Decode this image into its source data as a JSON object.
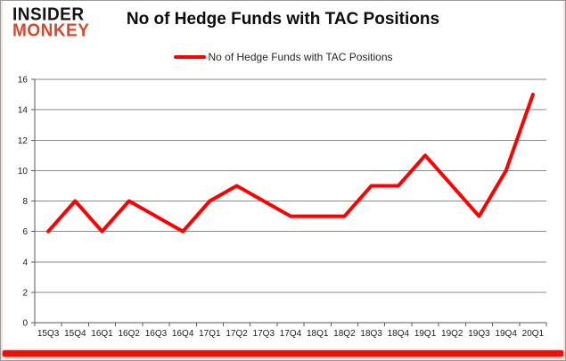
{
  "logo": {
    "line1": "INSIDER",
    "line2": "MONKEY"
  },
  "title": "No of Hedge Funds with TAC Positions",
  "legend": {
    "label": "No of Hedge Funds with TAC Positions",
    "color": "#ff0000"
  },
  "chart_data": {
    "type": "line",
    "title": "No of Hedge Funds with TAC Positions",
    "categories": [
      "15Q3",
      "15Q4",
      "16Q1",
      "16Q2",
      "16Q3",
      "16Q4",
      "17Q1",
      "17Q2",
      "17Q3",
      "17Q4",
      "18Q1",
      "18Q2",
      "18Q3",
      "18Q4",
      "19Q1",
      "19Q2",
      "19Q3",
      "19Q4",
      "20Q1"
    ],
    "series": [
      {
        "name": "No of Hedge Funds with TAC Positions",
        "color": "#ff0000",
        "values": [
          6,
          8,
          6,
          8,
          7,
          6,
          8,
          9,
          8,
          7,
          7,
          7,
          9,
          9,
          11,
          9,
          7,
          10,
          15
        ]
      }
    ],
    "xlabel": "",
    "ylabel": "",
    "ylim": [
      0,
      16
    ],
    "ytick_step": 2,
    "grid": true,
    "legend_position": "top-center"
  },
  "colors": {
    "line_red": "#ff0000",
    "logo_red": "#d6492f",
    "logo_black": "#141414",
    "gridline": "#8a8a8a",
    "axis": "#5a5a5a",
    "tick_label": "#1a1a1a",
    "card_border": "#9a9a9a",
    "bottom_bar_red": "#ee1109",
    "background": "#ffffff"
  }
}
